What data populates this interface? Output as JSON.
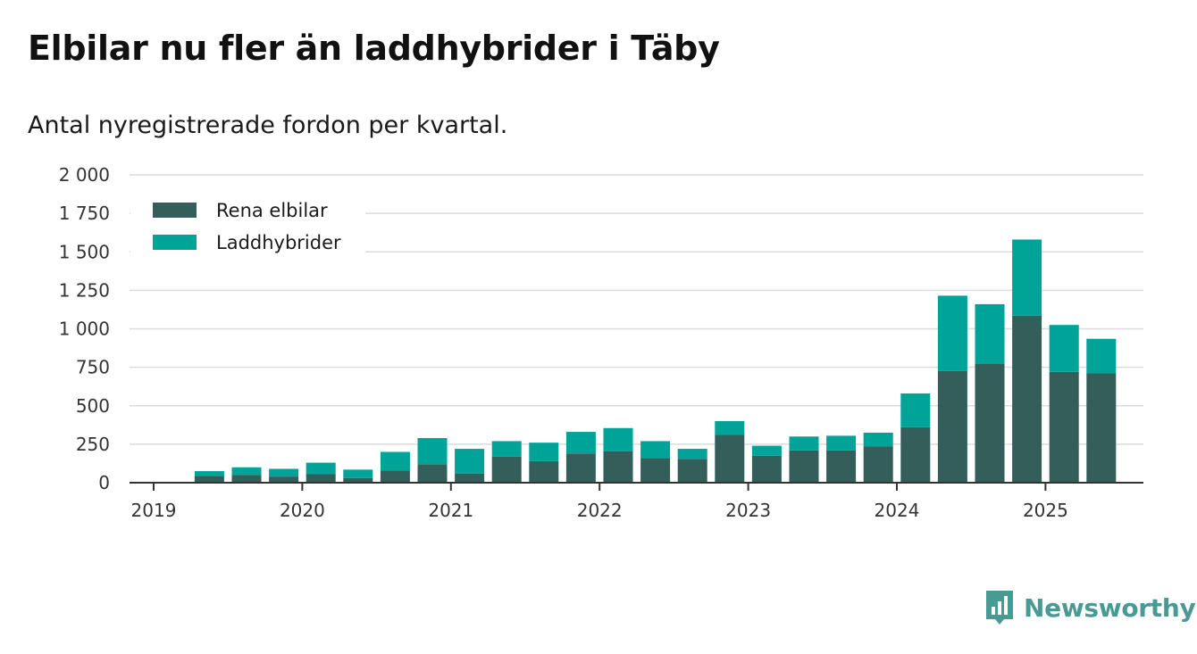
{
  "header": {
    "title": "Elbilar nu fler än laddhybrider i Täby",
    "subtitle": "Antal nyregistrerade fordon per kvartal."
  },
  "brand": {
    "name": "Newsworthy",
    "logo_icon": "newsworthy-bar-chart-logo-icon",
    "color": "#4a9a94"
  },
  "chart_data": {
    "type": "bar",
    "stacked": true,
    "title": "Elbilar nu fler än laddhybrider i Täby",
    "subtitle": "Antal nyregistrerade fordon per kvartal.",
    "xlabel": "",
    "ylabel": "",
    "ylim": [
      0,
      2000
    ],
    "yticks": [
      0,
      250,
      500,
      750,
      1000,
      1250,
      1500,
      1750,
      2000
    ],
    "ytick_labels": [
      "0",
      "250",
      "500",
      "750",
      "1 000",
      "1 250",
      "1 500",
      "1 750",
      "2 000"
    ],
    "xtick_labels": [
      "2019",
      "2020",
      "2021",
      "2022",
      "2023",
      "2024",
      "2025"
    ],
    "grid": true,
    "legend_position": "top-left",
    "categories": [
      "2019 Q2",
      "2019 Q3",
      "2019 Q4",
      "2020 Q1",
      "2020 Q2",
      "2020 Q3",
      "2020 Q4",
      "2021 Q1",
      "2021 Q2",
      "2021 Q3",
      "2021 Q4",
      "2022 Q1",
      "2022 Q2",
      "2022 Q3",
      "2022 Q4",
      "2023 Q1",
      "2023 Q2",
      "2023 Q3",
      "2023 Q4",
      "2024 Q1",
      "2024 Q2",
      "2024 Q3",
      "2024 Q4",
      "2025 Q1",
      "2025 Q2"
    ],
    "series": [
      {
        "name": "Rena elbilar",
        "color": "#335e5a",
        "values": [
          45,
          50,
          40,
          55,
          30,
          80,
          120,
          60,
          170,
          140,
          190,
          205,
          160,
          155,
          310,
          175,
          210,
          210,
          235,
          360,
          725,
          775,
          1085,
          720,
          710
        ]
      },
      {
        "name": "Laddhybrider",
        "color": "#00a398",
        "values": [
          30,
          50,
          50,
          75,
          55,
          120,
          170,
          160,
          100,
          120,
          140,
          150,
          110,
          65,
          90,
          65,
          90,
          95,
          90,
          220,
          490,
          385,
          495,
          305,
          225
        ]
      }
    ]
  }
}
